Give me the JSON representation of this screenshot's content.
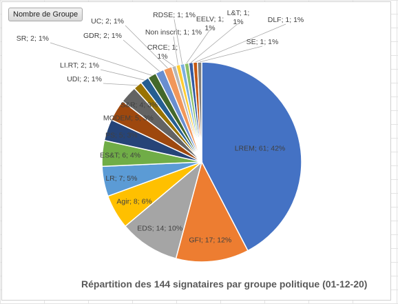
{
  "field_button": {
    "label": "Nombre de Groupe"
  },
  "chart_data": {
    "type": "pie",
    "title": "Répartition des 144 signataires par groupe politique (01-12-20)",
    "total": 144,
    "slices": [
      {
        "label": "LREM",
        "value": 61,
        "percent": "42%",
        "color": "#4472C4"
      },
      {
        "label": "GFI",
        "value": 17,
        "percent": "12%",
        "color": "#ED7D31"
      },
      {
        "label": "EDS",
        "value": 14,
        "percent": "10%",
        "color": "#A5A5A5"
      },
      {
        "label": "Agir",
        "value": 8,
        "percent": "6%",
        "color": "#FFC000"
      },
      {
        "label": "LR",
        "value": 7,
        "percent": "5%",
        "color": "#5B9BD5"
      },
      {
        "label": "ES&T",
        "value": 6,
        "percent": "4%",
        "color": "#70AD47"
      },
      {
        "label": "PS",
        "value": 5,
        "percent": "3%",
        "color": "#264478"
      },
      {
        "label": "MODEM",
        "value": 5,
        "percent": "3%",
        "color": "#9E480E"
      },
      {
        "label": "S&R",
        "value": 4,
        "percent": "3%",
        "color": "#636363"
      },
      {
        "label": "UDI",
        "value": 2,
        "percent": "1%",
        "color": "#997300"
      },
      {
        "label": "LI.RT",
        "value": 2,
        "percent": "1%",
        "color": "#255E91"
      },
      {
        "label": "SR",
        "value": 2,
        "percent": "1%",
        "color": "#43682B"
      },
      {
        "label": "GDR",
        "value": 2,
        "percent": "1%",
        "color": "#698ED0"
      },
      {
        "label": "UC",
        "value": 2,
        "percent": "1%",
        "color": "#F1975A"
      },
      {
        "label": "CRCE",
        "value": 1,
        "percent": "1%",
        "color": "#B7B7B7"
      },
      {
        "label": "Non inscrit",
        "value": 1,
        "percent": "1%",
        "color": "#FFCD33"
      },
      {
        "label": "RDSE",
        "value": 1,
        "percent": "1%",
        "color": "#7CAFDD"
      },
      {
        "label": "EELV",
        "value": 1,
        "percent": "1%",
        "color": "#8CC168"
      },
      {
        "label": "L&T",
        "value": 1,
        "percent": "1%",
        "color": "#335AA1"
      },
      {
        "label": "DLF",
        "value": 1,
        "percent": "1%",
        "color": "#C65911"
      },
      {
        "label": "SE",
        "value": 1,
        "percent": "1%",
        "color": "#7F7F7F"
      }
    ]
  }
}
